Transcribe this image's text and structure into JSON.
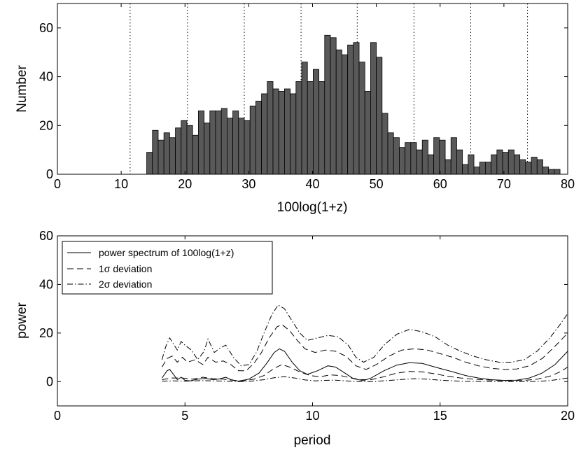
{
  "chart_data": [
    {
      "type": "bar",
      "title": "",
      "xlabel": "100log(1+z)",
      "ylabel": "Number",
      "xlim": [
        0,
        80
      ],
      "ylim": [
        0,
        70
      ],
      "xticks": [
        "0",
        "10",
        "20",
        "30",
        "40",
        "50",
        "60",
        "70",
        "80"
      ],
      "yticks": [
        "0",
        "20",
        "40",
        "60"
      ],
      "bin_start": 14,
      "bin_width": 0.9,
      "values": [
        9,
        18,
        14,
        17,
        15,
        19,
        22,
        20,
        16,
        26,
        21,
        26,
        26,
        27,
        23,
        26,
        23,
        22,
        28,
        30,
        33,
        38,
        35,
        34,
        35,
        33,
        38,
        46,
        38,
        43,
        38,
        57,
        56,
        51,
        49,
        53,
        54,
        46,
        34,
        54,
        48,
        25,
        17,
        15,
        11,
        13,
        13,
        10,
        14,
        8,
        15,
        14,
        6,
        15,
        10,
        4,
        8,
        3,
        5,
        5,
        8,
        10,
        9,
        10,
        8,
        6,
        5,
        7,
        6,
        3,
        2,
        2
      ],
      "reference_lines": [
        11.4,
        20.4,
        29.3,
        38.2,
        47.0,
        55.9,
        64.8,
        73.7
      ]
    },
    {
      "type": "line",
      "title": "",
      "xlabel": "period",
      "ylabel": "power",
      "xlim": [
        0,
        20
      ],
      "ylim": [
        -10,
        60
      ],
      "xticks": [
        "0",
        "5",
        "10",
        "15",
        "20"
      ],
      "yticks": [
        "0",
        "20",
        "40",
        "60"
      ],
      "legend_position": "top-left",
      "series": [
        {
          "name": "power spectrum of 100log(1+z)",
          "style": "solid",
          "points": [
            [
              4.1,
              1.5
            ],
            [
              4.3,
              4.5
            ],
            [
              4.4,
              5.0
            ],
            [
              4.55,
              3.0
            ],
            [
              4.7,
              0.8
            ],
            [
              4.85,
              1.8
            ],
            [
              5.0,
              0.5
            ],
            [
              5.2,
              0.3
            ],
            [
              5.5,
              1.0
            ],
            [
              5.8,
              1.3
            ],
            [
              6.1,
              0.8
            ],
            [
              6.3,
              1.0
            ],
            [
              6.6,
              1.8
            ],
            [
              6.8,
              0.8
            ],
            [
              7.1,
              0.2
            ],
            [
              7.5,
              1.0
            ],
            [
              7.9,
              3.5
            ],
            [
              8.2,
              7.5
            ],
            [
              8.5,
              12.0
            ],
            [
              8.7,
              13.5
            ],
            [
              8.9,
              12.5
            ],
            [
              9.2,
              8.0
            ],
            [
              9.5,
              4.5
            ],
            [
              9.8,
              3.0
            ],
            [
              10.2,
              4.5
            ],
            [
              10.6,
              6.5
            ],
            [
              10.9,
              6.0
            ],
            [
              11.2,
              4.0
            ],
            [
              11.6,
              1.2
            ],
            [
              12.0,
              0.4
            ],
            [
              12.3,
              1.5
            ],
            [
              12.8,
              4.5
            ],
            [
              13.3,
              6.8
            ],
            [
              13.8,
              7.8
            ],
            [
              14.3,
              7.5
            ],
            [
              14.8,
              6.0
            ],
            [
              15.5,
              4.0
            ],
            [
              16.0,
              2.5
            ],
            [
              16.5,
              1.5
            ],
            [
              17.0,
              0.8
            ],
            [
              17.5,
              0.5
            ],
            [
              18.0,
              0.6
            ],
            [
              18.5,
              1.5
            ],
            [
              19.0,
              3.5
            ],
            [
              19.5,
              7.0
            ],
            [
              20.0,
              12.5
            ]
          ]
        },
        {
          "name": "1σ deviation",
          "style": "dashed",
          "points": [
            [
              4.1,
              6.0
            ],
            [
              4.3,
              9.5
            ],
            [
              4.5,
              10.5
            ],
            [
              4.7,
              8.0
            ],
            [
              4.9,
              10.0
            ],
            [
              5.1,
              8.0
            ],
            [
              5.4,
              9.0
            ],
            [
              5.7,
              7.0
            ],
            [
              5.9,
              10.0
            ],
            [
              6.2,
              8.0
            ],
            [
              6.5,
              8.5
            ],
            [
              6.8,
              7.0
            ],
            [
              7.1,
              4.5
            ],
            [
              7.4,
              4.5
            ],
            [
              7.7,
              7.5
            ],
            [
              8.0,
              12.0
            ],
            [
              8.3,
              18.0
            ],
            [
              8.6,
              22.5
            ],
            [
              8.8,
              23.5
            ],
            [
              9.1,
              21.0
            ],
            [
              9.4,
              17.0
            ],
            [
              9.7,
              13.5
            ],
            [
              10.1,
              12.0
            ],
            [
              10.5,
              13.0
            ],
            [
              10.9,
              12.5
            ],
            [
              11.3,
              10.5
            ],
            [
              11.7,
              6.5
            ],
            [
              12.1,
              5.0
            ],
            [
              12.5,
              7.0
            ],
            [
              13.0,
              10.5
            ],
            [
              13.5,
              13.0
            ],
            [
              14.0,
              13.5
            ],
            [
              14.5,
              13.0
            ],
            [
              15.0,
              11.5
            ],
            [
              15.5,
              10.0
            ],
            [
              16.0,
              8.0
            ],
            [
              16.5,
              6.5
            ],
            [
              17.0,
              5.5
            ],
            [
              17.5,
              5.0
            ],
            [
              18.0,
              5.2
            ],
            [
              18.5,
              6.5
            ],
            [
              19.0,
              9.5
            ],
            [
              19.5,
              14.5
            ],
            [
              20.0,
              20.0
            ]
          ]
        },
        {
          "name": "2σ deviation",
          "style": "dashdot",
          "points": [
            [
              4.1,
              9.0
            ],
            [
              4.25,
              14.5
            ],
            [
              4.4,
              18.0
            ],
            [
              4.55,
              15.5
            ],
            [
              4.7,
              13.0
            ],
            [
              4.85,
              16.5
            ],
            [
              5.0,
              15.0
            ],
            [
              5.25,
              13.0
            ],
            [
              5.5,
              9.0
            ],
            [
              5.75,
              12.5
            ],
            [
              5.9,
              17.5
            ],
            [
              6.15,
              12.0
            ],
            [
              6.4,
              14.0
            ],
            [
              6.6,
              15.0
            ],
            [
              6.9,
              10.0
            ],
            [
              7.2,
              6.5
            ],
            [
              7.5,
              7.0
            ],
            [
              7.8,
              12.0
            ],
            [
              8.1,
              20.0
            ],
            [
              8.4,
              27.5
            ],
            [
              8.65,
              31.5
            ],
            [
              8.9,
              30.0
            ],
            [
              9.2,
              25.0
            ],
            [
              9.5,
              20.0
            ],
            [
              9.8,
              17.0
            ],
            [
              10.2,
              18.0
            ],
            [
              10.6,
              19.0
            ],
            [
              11.0,
              18.5
            ],
            [
              11.4,
              15.0
            ],
            [
              11.7,
              10.0
            ],
            [
              12.0,
              8.0
            ],
            [
              12.4,
              10.0
            ],
            [
              12.8,
              15.0
            ],
            [
              13.3,
              19.5
            ],
            [
              13.8,
              21.5
            ],
            [
              14.3,
              20.5
            ],
            [
              14.8,
              18.5
            ],
            [
              15.3,
              15.0
            ],
            [
              15.8,
              12.5
            ],
            [
              16.3,
              10.5
            ],
            [
              16.8,
              9.0
            ],
            [
              17.3,
              8.0
            ],
            [
              17.8,
              8.0
            ],
            [
              18.3,
              9.0
            ],
            [
              18.8,
              12.5
            ],
            [
              19.3,
              18.0
            ],
            [
              19.7,
              23.5
            ],
            [
              20.0,
              28.0
            ]
          ]
        },
        {
          "name": "",
          "style": "dashed",
          "points": [
            [
              4.1,
              0.8
            ],
            [
              4.5,
              1.5
            ],
            [
              4.9,
              1.5
            ],
            [
              5.3,
              1.0
            ],
            [
              5.7,
              1.8
            ],
            [
              6.1,
              1.2
            ],
            [
              6.5,
              1.0
            ],
            [
              6.9,
              0.5
            ],
            [
              7.3,
              0.3
            ],
            [
              7.7,
              1.0
            ],
            [
              8.1,
              2.5
            ],
            [
              8.5,
              5.5
            ],
            [
              8.8,
              7.0
            ],
            [
              9.1,
              6.0
            ],
            [
              9.5,
              4.0
            ],
            [
              9.9,
              2.5
            ],
            [
              10.3,
              2.0
            ],
            [
              10.7,
              2.8
            ],
            [
              11.1,
              2.5
            ],
            [
              11.5,
              1.5
            ],
            [
              11.9,
              0.8
            ],
            [
              12.3,
              0.8
            ],
            [
              12.8,
              2.0
            ],
            [
              13.3,
              3.5
            ],
            [
              13.8,
              4.2
            ],
            [
              14.3,
              4.0
            ],
            [
              14.8,
              3.2
            ],
            [
              15.3,
              2.2
            ],
            [
              15.8,
              1.5
            ],
            [
              16.3,
              1.0
            ],
            [
              16.8,
              0.7
            ],
            [
              17.3,
              0.5
            ],
            [
              17.8,
              0.4
            ],
            [
              18.3,
              0.5
            ],
            [
              18.8,
              1.0
            ],
            [
              19.3,
              2.2
            ],
            [
              19.7,
              4.0
            ],
            [
              20.0,
              6.0
            ]
          ]
        },
        {
          "name": "",
          "style": "dashdot",
          "points": [
            [
              4.1,
              0.2
            ],
            [
              4.6,
              0.3
            ],
            [
              5.1,
              0.2
            ],
            [
              5.6,
              0.4
            ],
            [
              6.1,
              0.3
            ],
            [
              6.6,
              0.2
            ],
            [
              7.1,
              0.0
            ],
            [
              7.6,
              0.2
            ],
            [
              8.1,
              0.8
            ],
            [
              8.5,
              1.6
            ],
            [
              8.9,
              2.0
            ],
            [
              9.3,
              1.5
            ],
            [
              9.7,
              0.7
            ],
            [
              10.1,
              0.3
            ],
            [
              10.5,
              0.5
            ],
            [
              10.9,
              0.6
            ],
            [
              11.3,
              0.3
            ],
            [
              11.8,
              0.0
            ],
            [
              12.3,
              0.0
            ],
            [
              12.9,
              0.4
            ],
            [
              13.5,
              0.9
            ],
            [
              14.0,
              1.2
            ],
            [
              14.5,
              1.0
            ],
            [
              15.0,
              0.6
            ],
            [
              15.5,
              0.3
            ],
            [
              16.0,
              0.1
            ],
            [
              17.0,
              0.0
            ],
            [
              18.0,
              0.0
            ],
            [
              18.8,
              0.1
            ],
            [
              19.3,
              0.4
            ],
            [
              19.7,
              1.0
            ],
            [
              20.0,
              1.5
            ]
          ]
        }
      ]
    }
  ]
}
